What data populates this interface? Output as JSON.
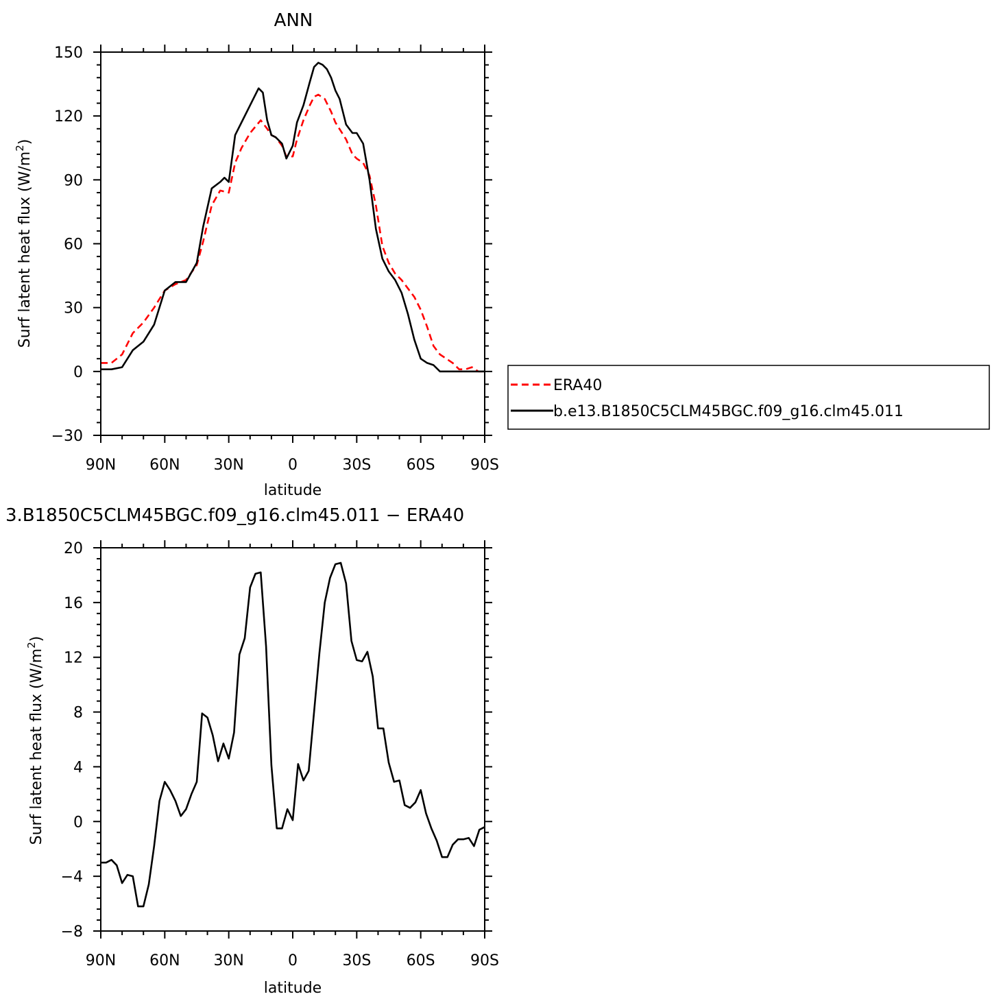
{
  "colors": {
    "obs": "#ff0000",
    "model": "#000000",
    "axes": "#000000",
    "background": "#ffffff"
  },
  "chart_data": [
    {
      "type": "line",
      "title": "ANN",
      "xlabel": "latitude",
      "ylabel": "Surf latent heat flux (W/m",
      "ylabel_sup": "2",
      "ylabel_close": ")",
      "x_axis": "latitude (degrees north; negative = south)",
      "xlim": [
        90,
        -90
      ],
      "xticks": [
        90,
        60,
        30,
        0,
        -30,
        -60,
        -90
      ],
      "xtick_labels": [
        "90N",
        "60N",
        "30N",
        "0",
        "30S",
        "60S",
        "90S"
      ],
      "ylim": [
        -30,
        150
      ],
      "yticks": [
        -30,
        0,
        30,
        60,
        90,
        120,
        150
      ],
      "ytick_labels": [
        "−30",
        "0",
        "30",
        "60",
        "90",
        "120",
        "150"
      ],
      "grid": false,
      "legend_position": "right",
      "series": [
        {
          "name": "ERA40",
          "style": "dashed",
          "color": "#ff0000",
          "x": [
            90,
            85,
            80,
            75,
            70,
            65,
            60,
            55,
            50,
            45,
            42,
            38,
            34,
            30,
            27,
            24,
            20,
            15,
            12,
            10,
            8,
            5,
            3,
            0,
            -2,
            -5,
            -8,
            -10,
            -12,
            -15,
            -18,
            -20,
            -25,
            -28,
            -30,
            -33,
            -36,
            -39,
            -42,
            -45,
            -48,
            -51,
            -54,
            -57,
            -60,
            -63,
            -66,
            -69,
            -72,
            -75,
            -78,
            -81,
            -84,
            -87,
            -90
          ],
          "y": [
            4,
            4,
            8,
            18,
            23,
            30,
            38,
            41,
            43,
            50,
            61,
            78,
            85,
            84,
            98,
            105,
            112,
            118,
            114,
            111,
            110,
            106,
            101,
            101,
            109,
            118,
            125,
            129,
            130,
            128,
            122,
            117,
            109,
            102,
            100,
            98,
            92,
            78,
            59,
            51,
            46,
            43,
            39,
            35,
            29,
            21,
            12,
            8,
            6,
            4,
            1,
            1,
            2,
            0,
            0
          ]
        },
        {
          "name": "b.e13.B1850C5CLM45BGC.f09_g16.clm45.011",
          "style": "solid",
          "color": "#000000",
          "x": [
            90,
            85,
            80,
            75,
            70,
            65,
            60,
            55,
            50,
            45,
            42,
            38,
            34,
            32,
            30,
            27,
            24,
            20,
            16,
            14,
            12,
            10,
            8,
            5,
            3,
            0,
            -2,
            -5,
            -8,
            -10,
            -12,
            -14,
            -16,
            -18,
            -20,
            -22,
            -25,
            -28,
            -30,
            -33,
            -36,
            -39,
            -42,
            -45,
            -48,
            -51,
            -54,
            -57,
            -60,
            -63,
            -66,
            -69,
            -72,
            -75,
            -78,
            -81,
            -84,
            -87,
            -90
          ],
          "y": [
            1,
            1,
            2,
            10,
            14,
            22,
            38,
            42,
            42,
            51,
            68,
            86,
            89,
            91,
            89,
            111,
            117,
            125,
            133,
            131,
            118,
            111,
            110,
            107,
            100,
            106,
            117,
            125,
            136,
            143,
            145,
            144,
            142,
            138,
            132,
            128,
            116,
            112,
            112,
            107,
            90,
            67,
            53,
            47,
            43,
            37,
            27,
            15,
            6,
            4,
            3,
            0,
            0,
            0,
            0,
            0,
            0,
            0,
            0
          ]
        }
      ]
    },
    {
      "type": "line",
      "title": "3.B1850C5CLM45BGC.f09_g16.clm45.011  −  ERA40",
      "xlabel": "latitude",
      "ylabel": "Surf latent heat flux (W/m",
      "ylabel_sup": "2",
      "ylabel_close": ")",
      "x_axis": "latitude (degrees north; negative = south)",
      "xlim": [
        90,
        -90
      ],
      "xticks": [
        90,
        60,
        30,
        0,
        -30,
        -60,
        -90
      ],
      "xtick_labels": [
        "90N",
        "60N",
        "30N",
        "0",
        "30S",
        "60S",
        "90S"
      ],
      "ylim": [
        -8,
        20
      ],
      "yticks": [
        -8,
        -4,
        0,
        4,
        8,
        12,
        16,
        20
      ],
      "ytick_labels": [
        "−8",
        "−4",
        "0",
        "4",
        "8",
        "12",
        "16",
        "20"
      ],
      "grid": false,
      "series": [
        {
          "style": "solid",
          "color": "#000000",
          "x": [
            90,
            87.5,
            85,
            82.5,
            80,
            77.5,
            75,
            72.5,
            70,
            67.5,
            65,
            62.5,
            60,
            57.5,
            55,
            52.5,
            50,
            47.5,
            45,
            42.5,
            40,
            37.5,
            35,
            32.5,
            30,
            27.5,
            25,
            22.5,
            20,
            17.5,
            15,
            12.5,
            10,
            7.5,
            5,
            2.5,
            0,
            -2.5,
            -5,
            -7.5,
            -10,
            -12.5,
            -15,
            -17.5,
            -20,
            -22.5,
            -25,
            -27.5,
            -30,
            -32.5,
            -35,
            -37.5,
            -40,
            -42.5,
            -45,
            -47.5,
            -50,
            -52.5,
            -55,
            -57.5,
            -60,
            -62.5,
            -65,
            -67.5,
            -70,
            -72.5,
            -75,
            -77.5,
            -80,
            -82.5,
            -85,
            -87.5,
            -90
          ],
          "y": [
            -3.0,
            -3.0,
            -2.8,
            -3.2,
            -4.5,
            -3.9,
            -4.0,
            -6.2,
            -6.2,
            -4.6,
            -1.8,
            1.5,
            2.9,
            2.3,
            1.5,
            0.4,
            0.9,
            2.0,
            2.9,
            7.9,
            7.6,
            6.3,
            4.4,
            5.7,
            4.6,
            6.5,
            12.2,
            13.4,
            17.1,
            18.1,
            18.2,
            12.8,
            4.1,
            -0.5,
            -0.5,
            0.9,
            0.1,
            4.2,
            3.0,
            3.7,
            8.0,
            12.3,
            16.0,
            17.8,
            18.8,
            18.9,
            17.4,
            13.2,
            11.8,
            11.7,
            12.4,
            10.6,
            6.8,
            6.8,
            4.3,
            2.9,
            3.0,
            1.2,
            1.0,
            1.4,
            2.3,
            0.6,
            -0.5,
            -1.4,
            -2.6,
            -2.6,
            -1.7,
            -1.3,
            -1.3,
            -1.2,
            -1.8,
            -0.6,
            -0.4
          ]
        }
      ]
    }
  ]
}
